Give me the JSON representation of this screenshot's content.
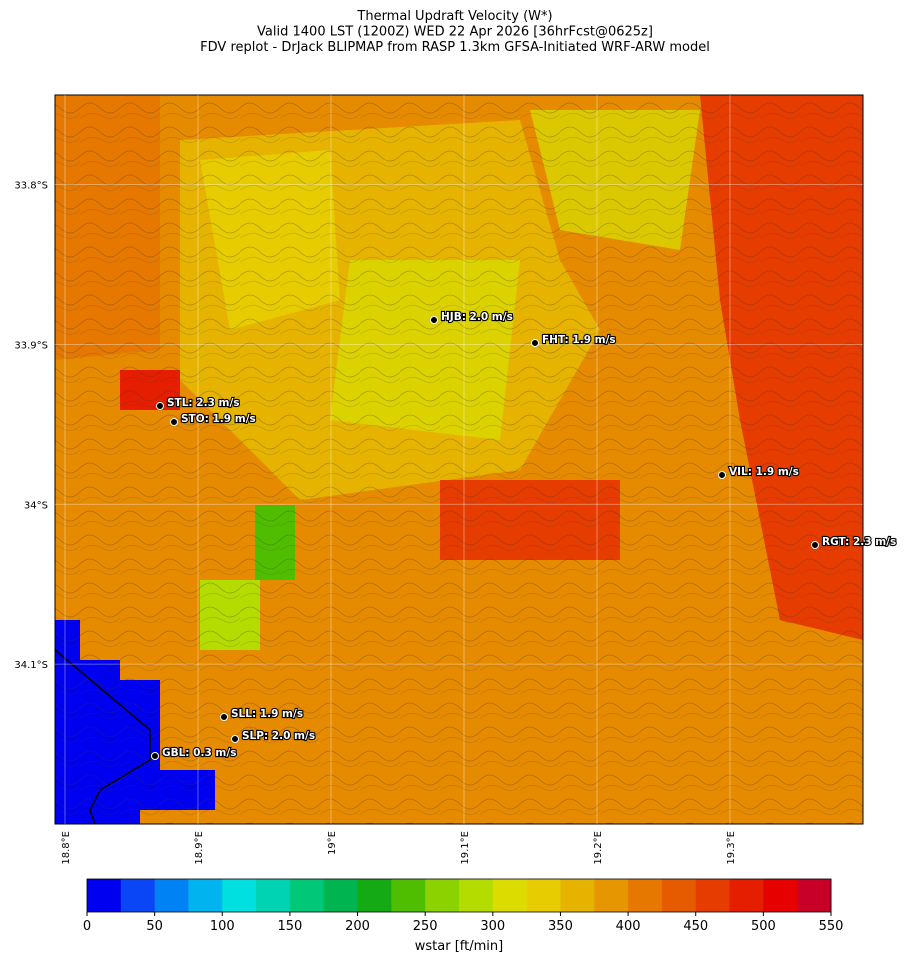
{
  "map": {
    "title": [
      "Thermal Updraft Velocity (W*)",
      "Valid 1400 LST (1200Z) WED 22 Apr 2026 [36hrFcst@0625z]",
      "FDV replot - DrJack BLIPMAP from RASP 1.3km GFSA-Initiated WRF-ARW model"
    ],
    "lat_ticks": [
      {
        "value": 33.8,
        "label": "33.8°S"
      },
      {
        "value": 33.9,
        "label": "33.9°S"
      },
      {
        "value": 34,
        "label": "34°S"
      },
      {
        "value": 34.1,
        "label": "34.1°S"
      }
    ],
    "lon_ticks": [
      {
        "value": 18.8,
        "label": "18.8°E"
      },
      {
        "value": 18.9,
        "label": "18.9°E"
      },
      {
        "value": 19,
        "label": "19°E"
      },
      {
        "value": 19.1,
        "label": "19.1°E"
      },
      {
        "value": 19.2,
        "label": "19.2°E"
      },
      {
        "value": 19.3,
        "label": "19.3°E"
      }
    ],
    "latlim": [
      33.744,
      34.2
    ],
    "lonlim": [
      18.7925,
      19.4
    ],
    "stations": [
      "HJB: 2.0 m/s",
      "FHT: 1.9 m/s",
      "STL: 2.3 m/s",
      "STO: 1.9 m/s",
      "VIL: 1.9 m/s",
      "RGT: 2.3 m/s",
      "SLL: 1.9 m/s",
      "SLP: 2.0 m/s",
      "GBL: 0.3 m/s"
    ]
  },
  "colorbar": {
    "label": "wstar [ft/min]",
    "range": [
      0,
      550
    ],
    "ticks": [
      0,
      50,
      100,
      150,
      200,
      250,
      300,
      350,
      400,
      450,
      500,
      550
    ],
    "colors": [
      "#0000f0",
      "#0a46f5",
      "#0082f5",
      "#00b4f0",
      "#00e0e0",
      "#00d2b4",
      "#00c878",
      "#00b450",
      "#14aa14",
      "#50be00",
      "#8cd200",
      "#b4dc00",
      "#dcdc00",
      "#e6cc00",
      "#e6b400",
      "#e69600",
      "#e67800",
      "#e65a00",
      "#e63c00",
      "#e61e00",
      "#e60000",
      "#c80028"
    ]
  }
}
